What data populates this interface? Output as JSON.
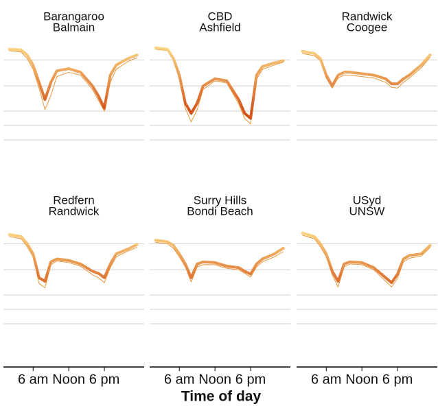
{
  "chart_data": [
    {
      "type": "line",
      "title": "Barangaroo",
      "subtitle": "Balmain",
      "x": [
        2,
        4,
        5,
        6,
        7,
        8,
        9,
        10,
        12,
        14,
        16,
        17,
        18,
        19,
        20,
        22,
        23.5
      ],
      "series": [
        {
          "color": "#fee08b",
          "values": [
            126,
            125,
            118,
            104,
            80,
            56,
            80,
            96,
            99,
            94,
            75,
            61,
            44,
            90,
            104,
            113,
            118
          ]
        },
        {
          "color": "#e8953a",
          "values": [
            124,
            122,
            113,
            98,
            72,
            42,
            62,
            88,
            94,
            90,
            70,
            55,
            40,
            80,
            98,
            109,
            114
          ]
        }
      ],
      "gradient": [
        "#d4541a",
        "#fee08b"
      ],
      "xlim": [
        1,
        24.7
      ],
      "ylim": [
        -10,
        135
      ],
      "yticks": [
        0,
        20,
        40,
        75,
        111
      ],
      "grid": true
    },
    {
      "type": "line",
      "title": "CBD",
      "subtitle": "Ashfield",
      "x": [
        2,
        4,
        5,
        6,
        7,
        8,
        9,
        10,
        12,
        14,
        16,
        17,
        18,
        19,
        20,
        22,
        23.5
      ],
      "series": [
        {
          "color": "#fee08b",
          "values": [
            128,
            126,
            113,
            90,
            51,
            37,
            51,
            75,
            85,
            82,
            56,
            37,
            30,
            90,
            102,
            107,
            110
          ]
        },
        {
          "color": "#e8953a",
          "values": [
            126,
            124,
            110,
            85,
            44,
            25,
            42,
            70,
            82,
            79,
            50,
            30,
            22,
            84,
            98,
            104,
            108
          ]
        }
      ],
      "gradient": [
        "#d4541a",
        "#fee08b"
      ],
      "xlim": [
        1,
        24.7
      ],
      "ylim": [
        -10,
        135
      ],
      "yticks": [
        0,
        20,
        40,
        75,
        111
      ],
      "grid": true
    },
    {
      "type": "line",
      "title": "Randwick",
      "subtitle": "Coogee",
      "x": [
        2,
        4,
        5,
        6,
        7,
        8,
        9,
        10,
        12,
        14,
        16,
        17,
        18,
        19,
        20,
        22,
        23.5
      ],
      "series": [
        {
          "color": "#fee08b",
          "values": [
            123,
            120,
            113,
            90,
            75,
            90,
            94,
            94,
            92,
            90,
            85,
            78,
            78,
            85,
            90,
            104,
            118
          ]
        },
        {
          "color": "#e8953a",
          "values": [
            120,
            117,
            110,
            86,
            72,
            86,
            90,
            90,
            88,
            86,
            80,
            73,
            72,
            80,
            86,
            100,
            115
          ]
        }
      ],
      "gradient": [
        "#d4541a",
        "#fee08b"
      ],
      "xlim": [
        1,
        24.7
      ],
      "ylim": [
        -10,
        135
      ],
      "yticks": [
        0,
        20,
        40,
        75,
        111
      ],
      "grid": true
    },
    {
      "type": "line",
      "title": "Redfern",
      "subtitle": "Randwick",
      "x": [
        2,
        4,
        5,
        6,
        7,
        8,
        9,
        10,
        12,
        14,
        16,
        17,
        18,
        19,
        20,
        22,
        23.5
      ],
      "series": [
        {
          "color": "#fee08b",
          "values": [
            124,
            121,
            111,
            97,
            64,
            59,
            86,
            90,
            88,
            83,
            73,
            70,
            64,
            83,
            97,
            104,
            110
          ]
        },
        {
          "color": "#e8953a",
          "values": [
            121,
            118,
            107,
            93,
            56,
            50,
            82,
            87,
            85,
            80,
            68,
            64,
            57,
            78,
            93,
            101,
            106
          ]
        }
      ],
      "gradient": [
        "#d4541a",
        "#fee08b"
      ],
      "xlim": [
        1,
        24.7
      ],
      "ylim": [
        -10,
        135
      ],
      "yticks": [
        0,
        20,
        40,
        75,
        111
      ],
      "grid": true,
      "xticks": [
        {
          "value": 6,
          "label": "6 am"
        },
        {
          "value": 12,
          "label": "Noon"
        },
        {
          "value": 18,
          "label": "6 pm"
        }
      ]
    },
    {
      "type": "line",
      "title": "Surry Hills",
      "subtitle": "Bondi Beach",
      "x": [
        2,
        4,
        5,
        6,
        7,
        8,
        9,
        10,
        12,
        14,
        16,
        17,
        18,
        19,
        20,
        22,
        23.5
      ],
      "series": [
        {
          "color": "#fee08b",
          "values": [
            116,
            114,
            109,
            97,
            83,
            64,
            83,
            86,
            85,
            80,
            78,
            73,
            69,
            83,
            90,
            97,
            105
          ]
        },
        {
          "color": "#e8953a",
          "values": [
            113,
            111,
            105,
            93,
            79,
            58,
            79,
            82,
            82,
            77,
            75,
            70,
            65,
            79,
            86,
            93,
            100
          ]
        }
      ],
      "gradient": [
        "#d4541a",
        "#fee08b"
      ],
      "xlim": [
        1,
        24.7
      ],
      "ylim": [
        -10,
        135
      ],
      "yticks": [
        0,
        20,
        40,
        75,
        111
      ],
      "grid": true,
      "xticks": [
        {
          "value": 6,
          "label": "6 am"
        },
        {
          "value": 12,
          "label": "Noon"
        },
        {
          "value": 18,
          "label": "6 pm"
        }
      ],
      "xlabel": "Time of day"
    },
    {
      "type": "line",
      "title": "USyd",
      "subtitle": "UNSW",
      "x": [
        2,
        4,
        5,
        6,
        7,
        8,
        9,
        10,
        12,
        14,
        16,
        17,
        18,
        19,
        20,
        22,
        23.5
      ],
      "series": [
        {
          "color": "#fee08b",
          "values": [
            126,
            121,
            111,
            97,
            73,
            59,
            83,
            86,
            85,
            78,
            64,
            57,
            69,
            90,
            95,
            97,
            109
          ]
        },
        {
          "color": "#e8953a",
          "values": [
            123,
            118,
            107,
            93,
            68,
            51,
            79,
            83,
            82,
            75,
            59,
            51,
            63,
            86,
            91,
            94,
            106
          ]
        }
      ],
      "gradient": [
        "#d4541a",
        "#fee08b"
      ],
      "xlim": [
        1,
        24.7
      ],
      "ylim": [
        -10,
        135
      ],
      "yticks": [
        0,
        20,
        40,
        75,
        111
      ],
      "grid": true,
      "xticks": [
        {
          "value": 6,
          "label": "6 am"
        },
        {
          "value": 12,
          "label": "Noon"
        },
        {
          "value": 18,
          "label": "6 pm"
        }
      ]
    }
  ]
}
